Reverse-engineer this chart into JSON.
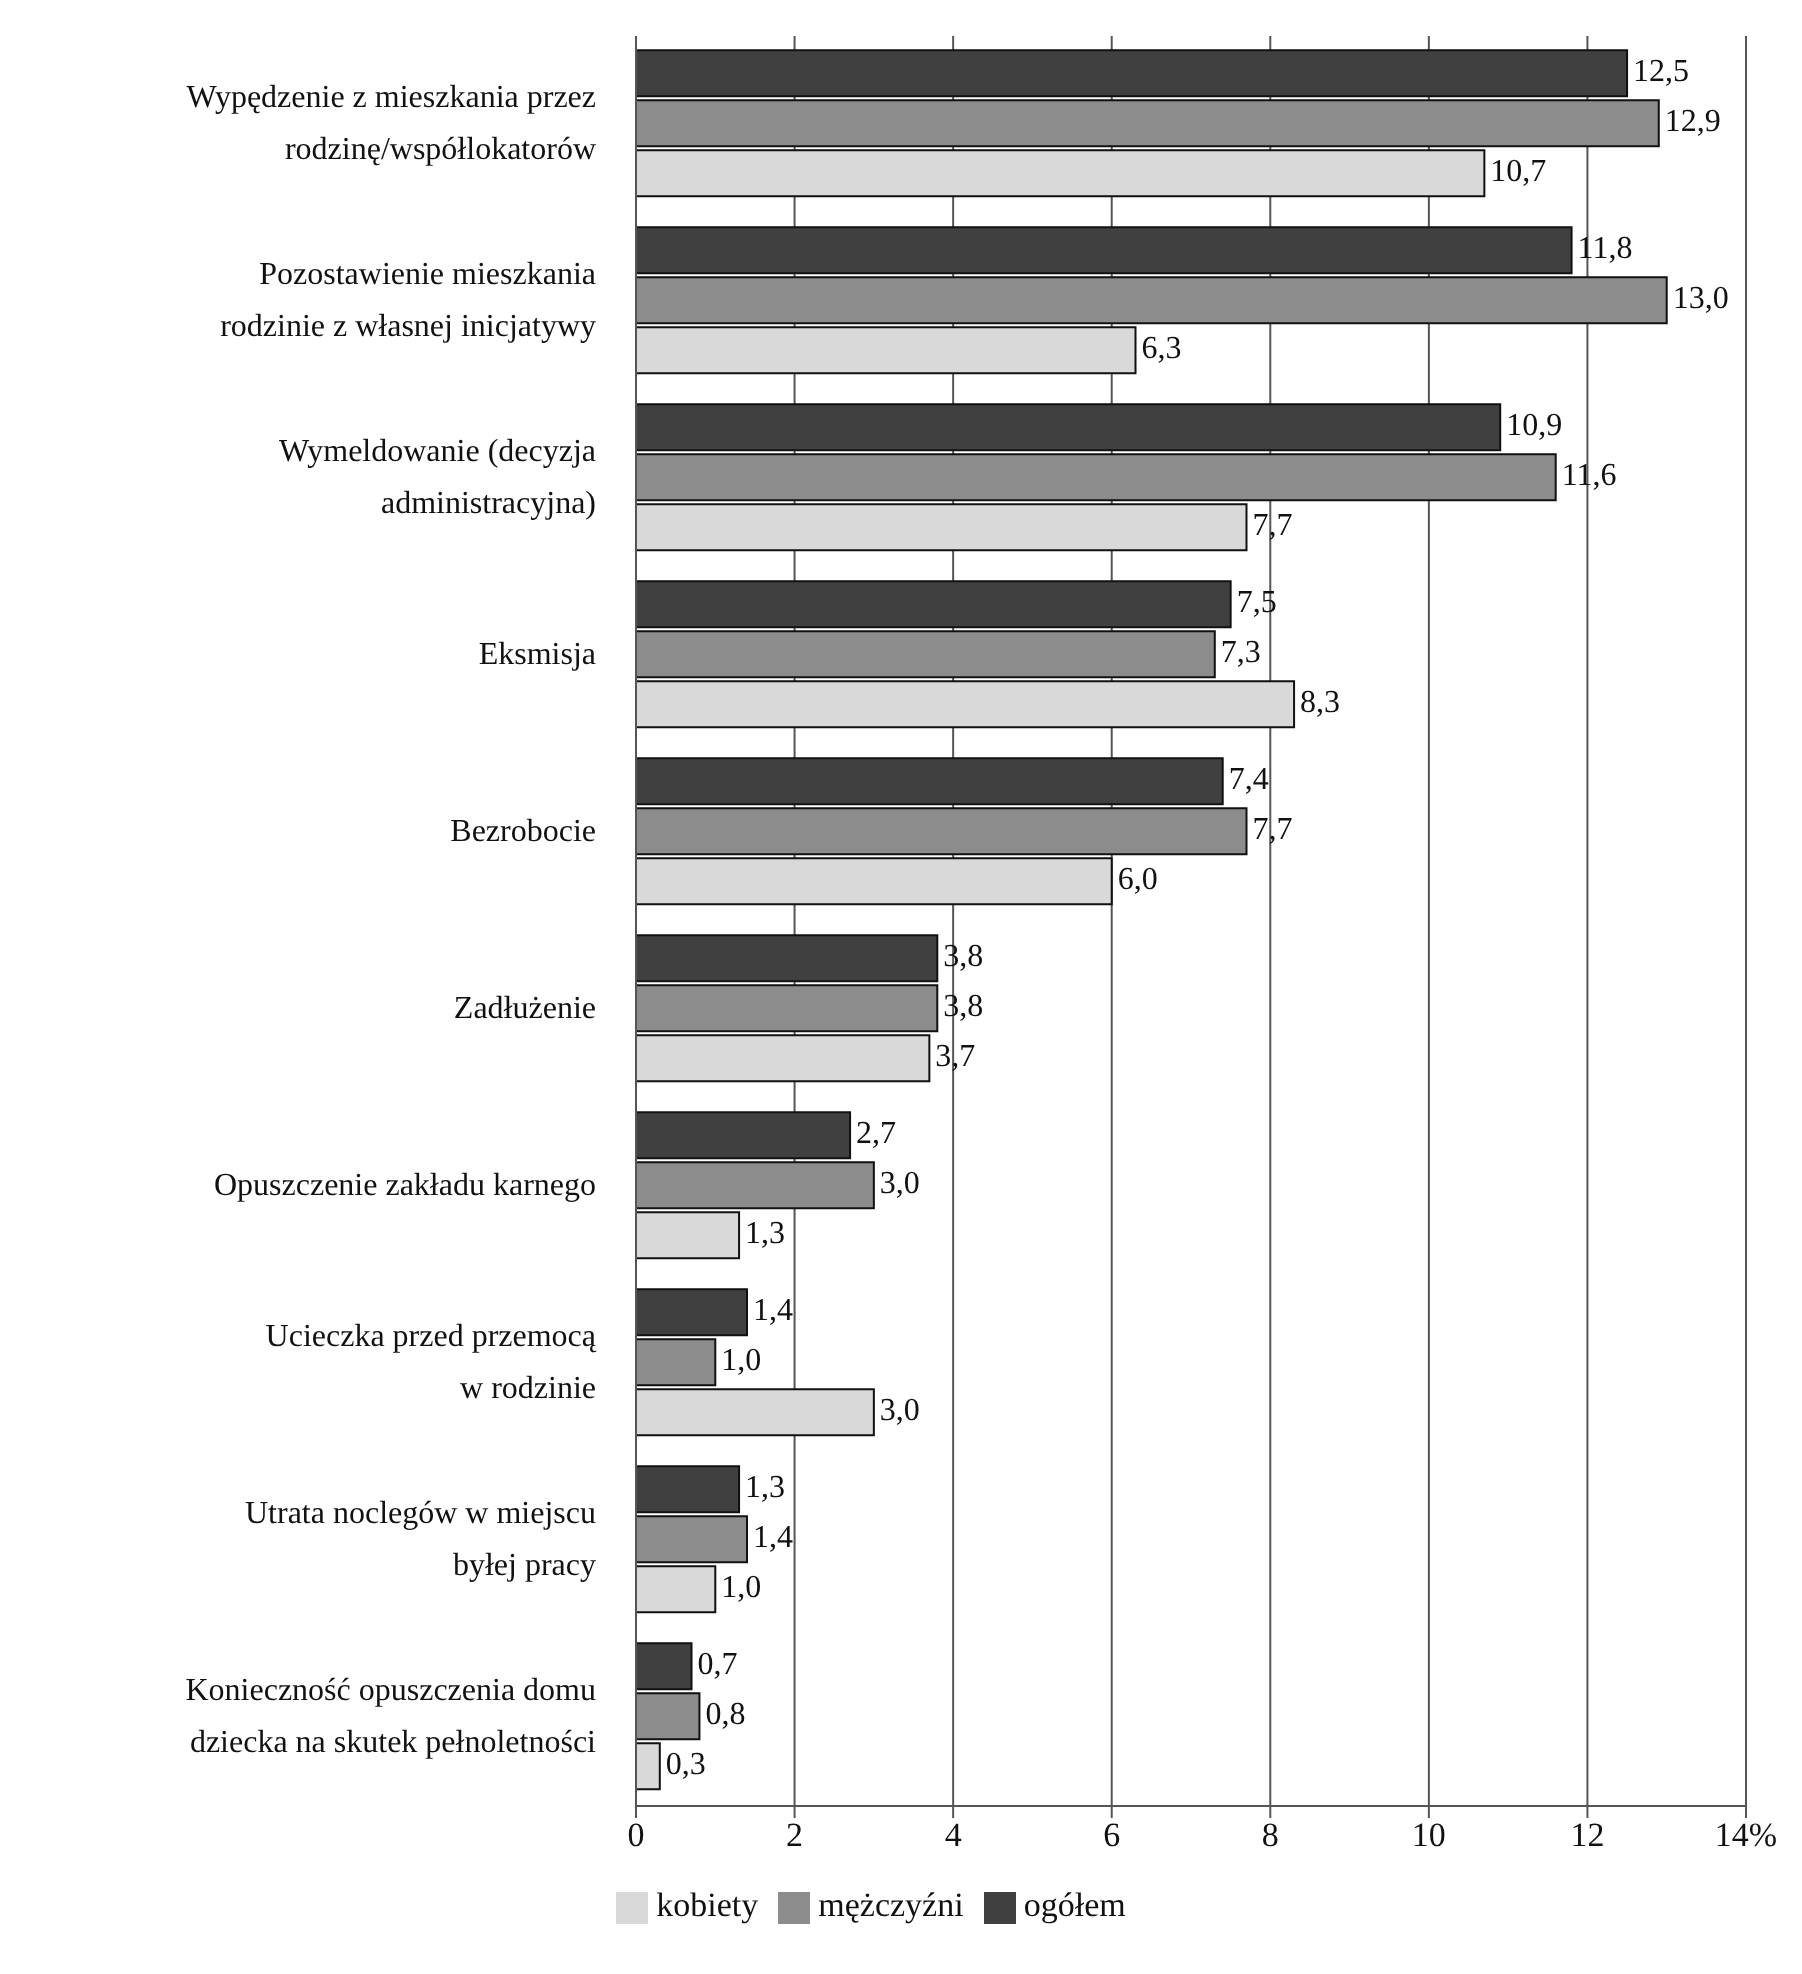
{
  "chart_data": {
    "type": "bar",
    "orientation": "horizontal",
    "categories": [
      "Wypędzenie z mieszkania przez\nrodzinę/współlokatorów",
      "Pozostawienie mieszkania\nrodzinie z własnej inicjatywy",
      "Wymeldowanie (decyzja\nadministracyjna)",
      "Eksmisja",
      "Bezrobocie",
      "Zadłużenie",
      "Opuszczenie zakładu karnego",
      "Ucieczka przed przemocą\nw rodzinie",
      "Utrata noclegów w miejscu\nbyłej pracy",
      "Konieczność opuszczenia domu\ndziecka na skutek pełnoletności"
    ],
    "series": [
      {
        "name": "ogółem",
        "color": "#404040",
        "values": [
          12.5,
          11.8,
          10.9,
          7.5,
          7.4,
          3.8,
          2.7,
          1.4,
          1.3,
          0.7
        ],
        "value_labels": [
          "12,5",
          "11,8",
          "10,9",
          "7,5",
          "7,4",
          "3,8",
          "2,7",
          "1,4",
          "1,3",
          "0,7"
        ]
      },
      {
        "name": "mężczyźni",
        "color": "#8c8c8c",
        "values": [
          12.9,
          13.0,
          11.6,
          7.3,
          7.7,
          3.8,
          3.0,
          1.0,
          1.4,
          0.8
        ],
        "value_labels": [
          "12,9",
          "13,0",
          "11,6",
          "7,3",
          "7,7",
          "3,8",
          "3,0",
          "1,0",
          "1,4",
          "0,8"
        ]
      },
      {
        "name": "kobiety",
        "color": "#d9d9d9",
        "values": [
          10.7,
          6.3,
          7.7,
          8.3,
          6.0,
          3.7,
          1.3,
          3.0,
          1.0,
          0.3
        ],
        "value_labels": [
          "10,7",
          "6,3",
          "7,7",
          "8,3",
          "6,0",
          "3,7",
          "1,3",
          "3,0",
          "1,0",
          "0,3"
        ]
      }
    ],
    "xlim": [
      0,
      14
    ],
    "xticks": [
      0,
      2,
      4,
      6,
      8,
      10,
      12,
      {
        "value": 14,
        "label": "14%"
      }
    ],
    "grid": "x",
    "legend": "bottom"
  }
}
